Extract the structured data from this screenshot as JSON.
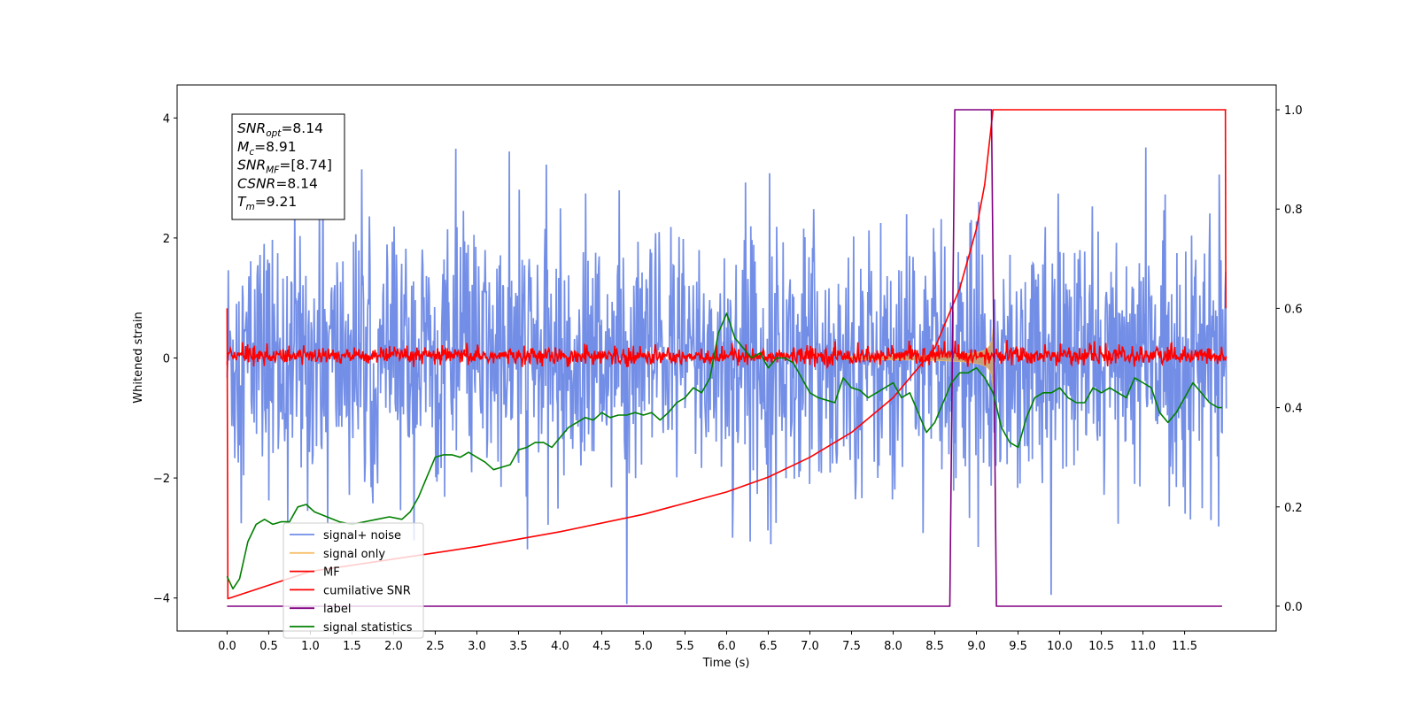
{
  "chart_data": {
    "type": "line",
    "title": "",
    "xlabel": "Time (s)",
    "ylabel": "Whitened strain",
    "xlim": [
      -0.6,
      12.6
    ],
    "ylim_left": [
      -4.55,
      4.55
    ],
    "ylim_right": [
      -0.05,
      1.05
    ],
    "x_ticks": [
      0.0,
      0.5,
      1.0,
      1.5,
      2.0,
      2.5,
      3.0,
      3.5,
      4.0,
      4.5,
      5.0,
      5.5,
      6.0,
      6.5,
      7.0,
      7.5,
      8.0,
      8.5,
      9.0,
      9.5,
      10.0,
      10.5,
      11.0,
      11.5
    ],
    "x_tick_labels": [
      "0.0",
      "0.5",
      "1.0",
      "1.5",
      "2.0",
      "2.5",
      "3.0",
      "3.5",
      "4.0",
      "4.5",
      "5.0",
      "5.5",
      "6.0",
      "6.5",
      "7.0",
      "7.5",
      "8.0",
      "8.5",
      "9.0",
      "9.5",
      "10.0",
      "10.5",
      "11.0",
      "11.5"
    ],
    "y_left_ticks": [
      4,
      2,
      0,
      -2,
      -4
    ],
    "y_left_tick_labels": [
      "4",
      "2",
      "0",
      "−2",
      "−4"
    ],
    "y_right_ticks": [
      1.0,
      0.8,
      0.6,
      0.4,
      0.2,
      0.0
    ],
    "y_right_tick_labels": [
      "1.0",
      "0.8",
      "0.6",
      "0.4",
      "0.2",
      "0.0"
    ],
    "grid": false,
    "legend_position": "lower-left",
    "info_box": [
      {
        "sym": "SNR",
        "sub": "opt",
        "val": "=8.14"
      },
      {
        "sym": "M",
        "sub": "c",
        "val": "=8.91"
      },
      {
        "sym": "SNR",
        "sub": "MF",
        "val": "=[8.74]"
      },
      {
        "sym": "CSNR",
        "sub": "",
        "val": "=8.14"
      },
      {
        "sym": "T",
        "sub": "m",
        "val": "=9.21"
      }
    ],
    "series": [
      {
        "name": "signal+ noise",
        "color": "#6f8be6",
        "axis": "left",
        "kind": "noise",
        "x_range": [
          0.0,
          12.0
        ],
        "amplitude_range": [
          -4.1,
          4.1
        ]
      },
      {
        "name": "signal only",
        "color": "#f5c06a",
        "axis": "left",
        "kind": "chirp",
        "x_range": [
          0.0,
          9.21
        ],
        "peak_amplitude": 0.75
      },
      {
        "name": "MF",
        "color": "#ff0000",
        "axis": "left",
        "kind": "noise",
        "x_range": [
          0.0,
          12.0
        ],
        "amplitude_range": [
          -0.15,
          0.3
        ]
      },
      {
        "name": "cumilative SNR",
        "color": "#ff0000",
        "axis": "right",
        "x": [
          0.0,
          0.01,
          1.0,
          2.0,
          3.0,
          4.0,
          5.0,
          6.0,
          6.5,
          7.0,
          7.5,
          8.0,
          8.5,
          8.8,
          9.0,
          9.1,
          9.2,
          9.21,
          12.0
        ],
        "y": [
          0.6,
          0.015,
          0.07,
          0.095,
          0.12,
          0.15,
          0.185,
          0.23,
          0.26,
          0.3,
          0.35,
          0.42,
          0.52,
          0.64,
          0.76,
          0.85,
          1.0,
          1.0,
          1.0
        ],
        "end_spike": [
          11.99,
          0.6
        ]
      },
      {
        "name": "label",
        "color": "#800080",
        "axis": "right",
        "x": [
          0.0,
          8.68,
          8.74,
          9.18,
          9.24,
          11.95
        ],
        "y": [
          0.0,
          0.0,
          1.0,
          1.0,
          0.0,
          0.0
        ]
      },
      {
        "name": "signal statistics",
        "color": "#008000",
        "axis": "right",
        "x": [
          0.0,
          0.07,
          0.15,
          0.25,
          0.35,
          0.45,
          0.55,
          0.65,
          0.75,
          0.85,
          0.95,
          1.05,
          1.2,
          1.35,
          1.5,
          1.65,
          1.8,
          1.95,
          2.1,
          2.2,
          2.3,
          2.4,
          2.5,
          2.6,
          2.7,
          2.8,
          2.9,
          3.0,
          3.1,
          3.2,
          3.3,
          3.4,
          3.5,
          3.6,
          3.7,
          3.8,
          3.9,
          4.0,
          4.1,
          4.2,
          4.3,
          4.4,
          4.5,
          4.6,
          4.7,
          4.8,
          4.9,
          5.0,
          5.1,
          5.2,
          5.3,
          5.4,
          5.5,
          5.6,
          5.7,
          5.8,
          5.9,
          6.0,
          6.1,
          6.2,
          6.3,
          6.4,
          6.5,
          6.6,
          6.7,
          6.8,
          6.9,
          7.0,
          7.1,
          7.2,
          7.3,
          7.4,
          7.5,
          7.6,
          7.7,
          7.8,
          7.9,
          8.0,
          8.1,
          8.2,
          8.3,
          8.4,
          8.5,
          8.6,
          8.7,
          8.8,
          8.9,
          9.0,
          9.1,
          9.2,
          9.3,
          9.4,
          9.5,
          9.6,
          9.7,
          9.8,
          9.9,
          10.0,
          10.1,
          10.2,
          10.3,
          10.4,
          10.5,
          10.6,
          10.7,
          10.8,
          10.9,
          11.0,
          11.1,
          11.2,
          11.3,
          11.4,
          11.5,
          11.6,
          11.7,
          11.8,
          11.9,
          11.95
        ],
        "y": [
          0.06,
          0.035,
          0.055,
          0.13,
          0.165,
          0.175,
          0.165,
          0.17,
          0.17,
          0.2,
          0.205,
          0.19,
          0.18,
          0.17,
          0.165,
          0.17,
          0.175,
          0.18,
          0.175,
          0.19,
          0.22,
          0.26,
          0.3,
          0.305,
          0.305,
          0.3,
          0.31,
          0.3,
          0.29,
          0.275,
          0.28,
          0.285,
          0.315,
          0.32,
          0.33,
          0.33,
          0.32,
          0.34,
          0.36,
          0.37,
          0.38,
          0.375,
          0.39,
          0.38,
          0.385,
          0.385,
          0.39,
          0.385,
          0.39,
          0.375,
          0.39,
          0.41,
          0.42,
          0.44,
          0.43,
          0.46,
          0.55,
          0.59,
          0.54,
          0.52,
          0.5,
          0.51,
          0.48,
          0.5,
          0.5,
          0.49,
          0.46,
          0.43,
          0.42,
          0.415,
          0.41,
          0.46,
          0.44,
          0.435,
          0.42,
          0.43,
          0.44,
          0.45,
          0.42,
          0.43,
          0.39,
          0.35,
          0.37,
          0.41,
          0.45,
          0.47,
          0.47,
          0.48,
          0.46,
          0.43,
          0.36,
          0.33,
          0.32,
          0.38,
          0.42,
          0.43,
          0.43,
          0.44,
          0.42,
          0.41,
          0.41,
          0.44,
          0.43,
          0.44,
          0.43,
          0.42,
          0.46,
          0.45,
          0.44,
          0.39,
          0.37,
          0.39,
          0.42,
          0.45,
          0.43,
          0.41,
          0.4,
          0.4
        ]
      }
    ]
  }
}
